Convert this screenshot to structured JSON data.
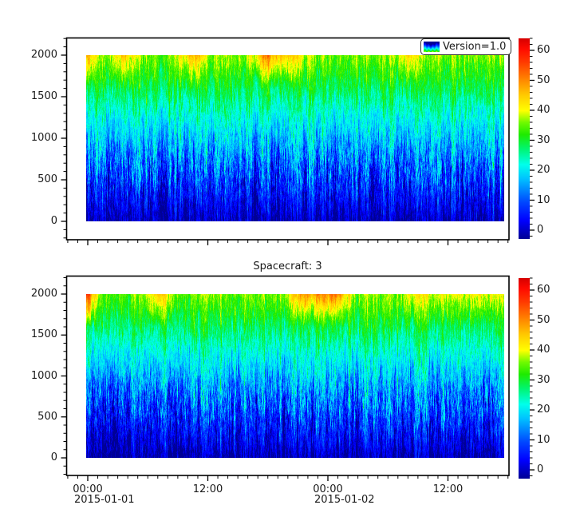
{
  "figure": {
    "background": "#ffffff",
    "legend_label": "Version=1.0",
    "panels": [
      {
        "title": "",
        "y_tick_labels": [
          "0",
          "500",
          "1000",
          "1500",
          "2000"
        ],
        "colorbar_tick_labels": [
          "0",
          "10",
          "20",
          "30",
          "40",
          "50",
          "60"
        ],
        "x_tick_labels": []
      },
      {
        "title": "Spacecraft: 3",
        "y_tick_labels": [
          "0",
          "500",
          "1000",
          "1500",
          "2000"
        ],
        "colorbar_tick_labels": [
          "0",
          "10",
          "20",
          "30",
          "40",
          "50",
          "60"
        ],
        "x_tick_labels": [
          {
            "time": "00:00",
            "date": "2015-01-01"
          },
          {
            "time": "12:00",
            "date": ""
          },
          {
            "time": "00:00",
            "date": "2015-01-02"
          },
          {
            "time": "12:00",
            "date": ""
          }
        ]
      }
    ],
    "colormap": {
      "vmin": -3,
      "vmax": 64,
      "stops": [
        [
          0.0,
          "#000096"
        ],
        [
          0.09,
          "#0000ff"
        ],
        [
          0.18,
          "#0046ff"
        ],
        [
          0.3,
          "#00c3ff"
        ],
        [
          0.37,
          "#00ffeb"
        ],
        [
          0.45,
          "#00f56e"
        ],
        [
          0.52,
          "#1eeb00"
        ],
        [
          0.58,
          "#6efa00"
        ],
        [
          0.64,
          "#ffff00"
        ],
        [
          0.72,
          "#ffc800"
        ],
        [
          0.8,
          "#ff8200"
        ],
        [
          0.88,
          "#ff3c00"
        ],
        [
          0.95,
          "#ff0a00"
        ],
        [
          1.0,
          "#d70000"
        ]
      ]
    }
  },
  "chart_data": [
    {
      "type": "heatmap",
      "title": "",
      "legend": [
        "Version=1.0"
      ],
      "x_axis": {
        "major_tick_labels": [
          "00:00",
          "12:00",
          "00:00",
          "12:00"
        ],
        "date_labels": [
          "2015-01-01",
          "2015-01-02"
        ],
        "minor_tick_interval": "1 hour",
        "labels_shown": false
      },
      "y_axis": {
        "major_ticks": [
          0,
          500,
          1000,
          1500,
          2000
        ],
        "minor_step": 100,
        "range": [
          -220,
          2205
        ]
      },
      "colorbar": {
        "major_ticks": [
          0,
          10,
          20,
          30,
          40,
          50,
          60
        ],
        "minor_step": 2,
        "range": [
          -3,
          64
        ],
        "colormap": "rainbow (navy-blue-cyan-green-yellow-orange-red)"
      },
      "mean_value_by_altitude": {
        "0": 2,
        "500": 11,
        "1000": 18,
        "1500": 27,
        "2000": 35
      },
      "description": "Noisy vertically-striped spectrogram: dark blue near altitude 0 rising through cyan (~800) to green (~1500-2000), yellow patches at the very top, strongest at the left edge."
    },
    {
      "type": "heatmap",
      "title": "Spacecraft: 3",
      "legend": [],
      "x_axis": {
        "major_tick_labels": [
          "00:00",
          "12:00",
          "00:00",
          "12:00"
        ],
        "date_labels": [
          "2015-01-01",
          "2015-01-02"
        ],
        "minor_tick_interval": "1 hour",
        "labels_shown": true
      },
      "y_axis": {
        "major_ticks": [
          0,
          500,
          1000,
          1500,
          2000
        ],
        "minor_step": 100,
        "range": [
          -215,
          2225
        ]
      },
      "colorbar": {
        "major_ticks": [
          0,
          10,
          20,
          30,
          40,
          50,
          60
        ],
        "minor_step": 2,
        "range": [
          -3,
          64
        ],
        "colormap": "rainbow (navy-blue-cyan-green-yellow-orange-red)"
      },
      "mean_value_by_altitude": {
        "0": 2,
        "500": 11,
        "1000": 18,
        "1500": 27,
        "2000": 35
      },
      "description": "Same structure as top panel with different noise realization."
    }
  ]
}
